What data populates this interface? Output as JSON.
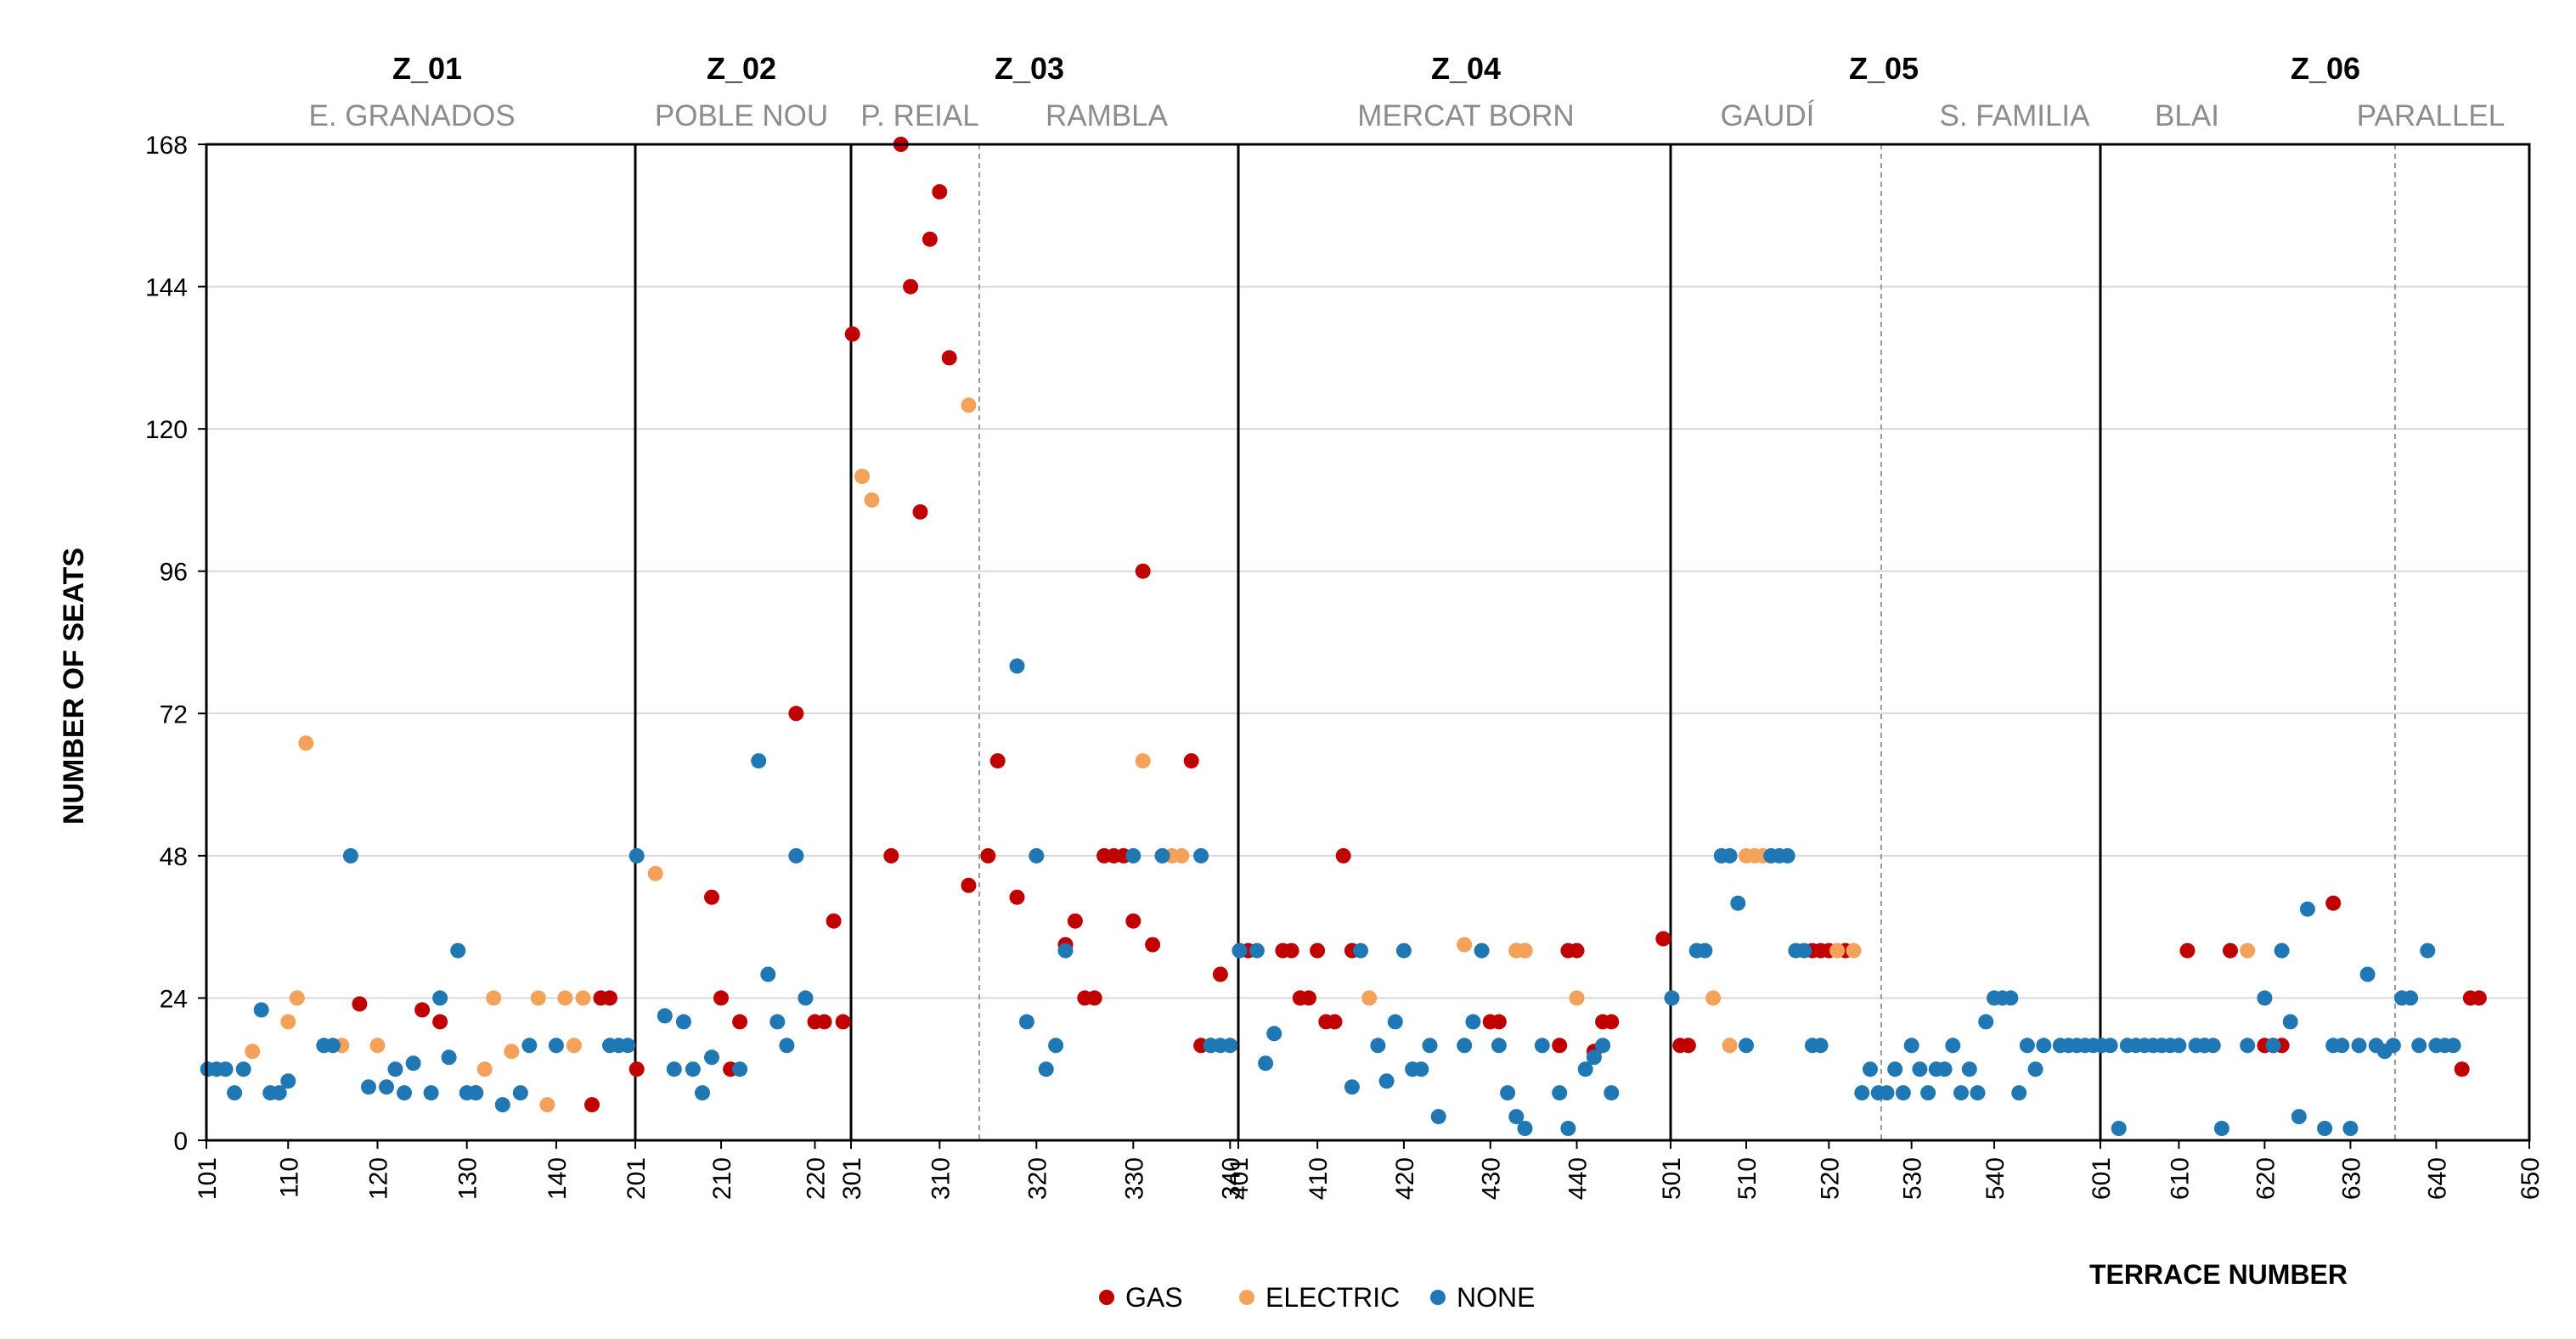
{
  "chart_data": {
    "type": "scatter",
    "ylabel": "NUMBER OF SEATS",
    "xlabel": "TERRACE NUMBER",
    "ylim": [
      0,
      168
    ],
    "yticks": [
      0,
      24,
      48,
      72,
      96,
      120,
      144,
      168
    ],
    "grid": true,
    "legend_position": "bottom-center",
    "colors": {
      "GAS": "#c00000",
      "ELECTRIC": "#f4a259",
      "NONE": "#1f77b4",
      "axis": "#000000",
      "divider": "#000000",
      "subdivider": "#9a9a9a",
      "grid": "#d9d9d9",
      "neighborhood": "#8c8c8c"
    },
    "zones": [
      {
        "name": "Z_01",
        "neighborhoods": [
          "E. GRANADOS"
        ],
        "start_label": "101",
        "ticks": [
          "110",
          "120",
          "130",
          "140"
        ],
        "end_label": "201"
      },
      {
        "name": "Z_02",
        "neighborhoods": [
          "POBLE NOU"
        ],
        "ticks": [
          "210",
          "220"
        ],
        "end_label": "301"
      },
      {
        "name": "Z_03",
        "neighborhoods": [
          "P. REIAL",
          "RAMBLA"
        ],
        "ticks": [
          "310",
          "320",
          "330",
          "340"
        ],
        "end_label": "401"
      },
      {
        "name": "Z_04",
        "neighborhoods": [
          "MERCAT  BORN"
        ],
        "ticks": [
          "410",
          "420",
          "430",
          "440"
        ],
        "end_label": "501"
      },
      {
        "name": "Z_05",
        "neighborhoods": [
          "GAUDÍ",
          "S. FAMILIA"
        ],
        "ticks": [
          "510",
          "520",
          "530",
          "540"
        ],
        "end_label": "601"
      },
      {
        "name": "Z_06",
        "neighborhoods": [
          "BLAI",
          "PARALLEL"
        ],
        "ticks": [
          "610",
          "620",
          "630",
          "640"
        ],
        "end_label": "650"
      }
    ],
    "series": [
      {
        "name": "GAS",
        "points": [
          [
            144,
            6
          ],
          [
            145,
            24
          ],
          [
            146,
            24
          ],
          [
            201,
            12
          ],
          [
            209,
            41
          ],
          [
            210,
            24
          ],
          [
            211,
            12
          ],
          [
            212,
            20
          ],
          [
            218,
            72
          ],
          [
            220,
            20
          ],
          [
            221,
            20
          ],
          [
            222,
            37
          ],
          [
            223,
            20
          ],
          [
            301,
            136
          ],
          [
            305,
            48
          ],
          [
            306,
            168
          ],
          [
            307,
            144
          ],
          [
            308,
            106
          ],
          [
            309,
            152
          ],
          [
            310,
            160
          ],
          [
            311,
            132
          ],
          [
            313,
            43
          ],
          [
            315,
            48
          ],
          [
            316,
            64
          ],
          [
            318,
            41
          ],
          [
            323,
            33
          ],
          [
            324,
            37
          ],
          [
            325,
            24
          ],
          [
            326,
            24
          ],
          [
            327,
            48
          ],
          [
            328,
            48
          ],
          [
            329,
            48
          ],
          [
            330,
            37
          ],
          [
            331,
            96
          ],
          [
            332,
            33
          ],
          [
            336,
            64
          ],
          [
            339,
            28
          ],
          [
            337,
            16
          ],
          [
            338,
            16
          ],
          [
            401,
            32
          ],
          [
            402,
            32
          ],
          [
            406,
            32
          ],
          [
            407,
            32
          ],
          [
            408,
            24
          ],
          [
            409,
            24
          ],
          [
            410,
            32
          ],
          [
            411,
            20
          ],
          [
            412,
            20
          ],
          [
            413,
            48
          ],
          [
            414,
            32
          ],
          [
            430,
            20
          ],
          [
            431,
            20
          ],
          [
            433,
            32
          ],
          [
            434,
            32
          ],
          [
            438,
            16
          ],
          [
            439,
            32
          ],
          [
            440,
            32
          ],
          [
            442,
            15
          ],
          [
            443,
            20
          ],
          [
            444,
            20
          ],
          [
            450,
            34
          ],
          [
            502,
            16
          ],
          [
            503,
            16
          ],
          [
            518,
            32
          ],
          [
            519,
            32
          ],
          [
            520,
            32
          ],
          [
            522,
            32
          ],
          [
            611,
            32
          ],
          [
            613,
            16
          ],
          [
            616,
            32
          ],
          [
            620,
            16
          ],
          [
            621,
            16
          ],
          [
            622,
            16
          ],
          [
            628,
            40
          ],
          [
            643,
            12
          ],
          [
            644,
            24
          ],
          [
            645,
            24
          ],
          [
            125,
            22
          ],
          [
            127,
            20
          ],
          [
            131,
            8
          ],
          [
            118,
            23
          ]
        ]
      },
      {
        "name": "ELECTRIC",
        "points": [
          [
            106,
            15
          ],
          [
            110,
            20
          ],
          [
            111,
            24
          ],
          [
            112,
            67
          ],
          [
            116,
            16
          ],
          [
            120,
            16
          ],
          [
            132,
            12
          ],
          [
            133,
            24
          ],
          [
            135,
            15
          ],
          [
            138,
            24
          ],
          [
            139,
            6
          ],
          [
            141,
            24
          ],
          [
            142,
            16
          ],
          [
            143,
            24
          ],
          [
            203,
            45
          ],
          [
            302,
            112
          ],
          [
            303,
            108
          ],
          [
            313,
            124
          ],
          [
            331,
            64
          ],
          [
            333,
            48
          ],
          [
            334,
            48
          ],
          [
            335,
            48
          ],
          [
            427,
            33
          ],
          [
            433,
            32
          ],
          [
            434,
            32
          ],
          [
            416,
            24
          ],
          [
            440,
            24
          ],
          [
            506,
            24
          ],
          [
            507,
            48
          ],
          [
            508,
            16
          ],
          [
            510,
            48
          ],
          [
            511,
            48
          ],
          [
            512,
            48
          ],
          [
            521,
            32
          ],
          [
            523,
            32
          ],
          [
            618,
            32
          ]
        ]
      },
      {
        "name": "NONE",
        "points": [
          [
            101,
            12
          ],
          [
            102,
            12
          ],
          [
            103,
            12
          ],
          [
            104,
            8
          ],
          [
            105,
            12
          ],
          [
            107,
            22
          ],
          [
            108,
            8
          ],
          [
            109,
            8
          ],
          [
            110,
            10
          ],
          [
            114,
            16
          ],
          [
            115,
            16
          ],
          [
            117,
            48
          ],
          [
            119,
            9
          ],
          [
            121,
            9
          ],
          [
            122,
            12
          ],
          [
            123,
            8
          ],
          [
            124,
            13
          ],
          [
            126,
            8
          ],
          [
            127,
            24
          ],
          [
            128,
            14
          ],
          [
            129,
            32
          ],
          [
            130,
            8
          ],
          [
            131,
            8
          ],
          [
            134,
            6
          ],
          [
            136,
            8
          ],
          [
            137,
            16
          ],
          [
            140,
            16
          ],
          [
            146,
            16
          ],
          [
            147,
            16
          ],
          [
            148,
            16
          ],
          [
            201,
            48
          ],
          [
            204,
            21
          ],
          [
            205,
            12
          ],
          [
            206,
            20
          ],
          [
            207,
            12
          ],
          [
            208,
            8
          ],
          [
            209,
            14
          ],
          [
            212,
            12
          ],
          [
            214,
            64
          ],
          [
            215,
            28
          ],
          [
            216,
            20
          ],
          [
            217,
            16
          ],
          [
            218,
            48
          ],
          [
            219,
            24
          ],
          [
            318,
            80
          ],
          [
            319,
            20
          ],
          [
            320,
            48
          ],
          [
            321,
            12
          ],
          [
            322,
            16
          ],
          [
            323,
            32
          ],
          [
            330,
            48
          ],
          [
            333,
            48
          ],
          [
            337,
            48
          ],
          [
            338,
            16
          ],
          [
            339,
            16
          ],
          [
            340,
            16
          ],
          [
            401,
            32
          ],
          [
            403,
            32
          ],
          [
            404,
            13
          ],
          [
            405,
            18
          ],
          [
            414,
            9
          ],
          [
            415,
            32
          ],
          [
            417,
            16
          ],
          [
            418,
            10
          ],
          [
            419,
            20
          ],
          [
            420,
            32
          ],
          [
            421,
            12
          ],
          [
            422,
            12
          ],
          [
            423,
            16
          ],
          [
            424,
            4
          ],
          [
            427,
            16
          ],
          [
            428,
            20
          ],
          [
            429,
            32
          ],
          [
            431,
            16
          ],
          [
            432,
            8
          ],
          [
            433,
            4
          ],
          [
            434,
            2
          ],
          [
            436,
            16
          ],
          [
            438,
            8
          ],
          [
            439,
            2
          ],
          [
            441,
            12
          ],
          [
            442,
            14
          ],
          [
            443,
            16
          ],
          [
            444,
            8
          ],
          [
            501,
            24
          ],
          [
            504,
            32
          ],
          [
            505,
            32
          ],
          [
            507,
            48
          ],
          [
            508,
            48
          ],
          [
            509,
            40
          ],
          [
            510,
            16
          ],
          [
            513,
            48
          ],
          [
            514,
            48
          ],
          [
            515,
            48
          ],
          [
            516,
            32
          ],
          [
            517,
            32
          ],
          [
            518,
            16
          ],
          [
            519,
            16
          ],
          [
            524,
            8
          ],
          [
            525,
            12
          ],
          [
            526,
            8
          ],
          [
            527,
            8
          ],
          [
            528,
            12
          ],
          [
            529,
            8
          ],
          [
            530,
            16
          ],
          [
            531,
            12
          ],
          [
            532,
            8
          ],
          [
            533,
            12
          ],
          [
            534,
            12
          ],
          [
            535,
            16
          ],
          [
            536,
            8
          ],
          [
            537,
            12
          ],
          [
            538,
            8
          ],
          [
            539,
            20
          ],
          [
            540,
            24
          ],
          [
            541,
            24
          ],
          [
            542,
            24
          ],
          [
            543,
            8
          ],
          [
            544,
            16
          ],
          [
            545,
            12
          ],
          [
            546,
            16
          ],
          [
            548,
            16
          ],
          [
            549,
            16
          ],
          [
            550,
            16
          ],
          [
            551,
            16
          ],
          [
            552,
            16
          ],
          [
            601,
            16
          ],
          [
            602,
            16
          ],
          [
            603,
            2
          ],
          [
            604,
            16
          ],
          [
            605,
            16
          ],
          [
            606,
            16
          ],
          [
            607,
            16
          ],
          [
            608,
            16
          ],
          [
            609,
            16
          ],
          [
            610,
            16
          ],
          [
            612,
            16
          ],
          [
            613,
            16
          ],
          [
            614,
            16
          ],
          [
            615,
            2
          ],
          [
            618,
            16
          ],
          [
            620,
            24
          ],
          [
            621,
            16
          ],
          [
            622,
            32
          ],
          [
            623,
            20
          ],
          [
            624,
            4
          ],
          [
            625,
            39
          ],
          [
            627,
            2
          ],
          [
            628,
            16
          ],
          [
            629,
            16
          ],
          [
            630,
            2
          ],
          [
            631,
            16
          ],
          [
            632,
            28
          ],
          [
            633,
            16
          ],
          [
            634,
            15
          ],
          [
            635,
            16
          ],
          [
            636,
            24
          ],
          [
            637,
            24
          ],
          [
            638,
            16
          ],
          [
            639,
            32
          ],
          [
            640,
            16
          ],
          [
            641,
            16
          ],
          [
            642,
            16
          ]
        ]
      }
    ]
  }
}
